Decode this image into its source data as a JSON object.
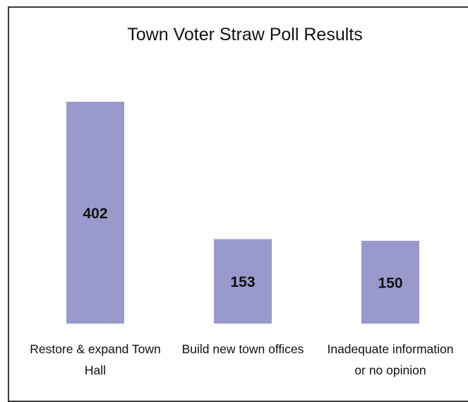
{
  "chart_data": {
    "type": "bar",
    "title": "Town Voter Straw Poll Results",
    "categories": [
      [
        "Restore & expand Town",
        "Hall"
      ],
      [
        "Build new town offices"
      ],
      [
        "Inadequate information",
        "or no opinion"
      ]
    ],
    "values": [
      402,
      153,
      150
    ],
    "value_labels": [
      "402",
      "153",
      "150"
    ],
    "xlabel": "",
    "ylabel": "",
    "ylim": [
      0,
      402
    ],
    "grid": false,
    "legend": "none",
    "colors": {
      "bar": "#9999cc",
      "frame": "#3a3a3a",
      "text": "#111111"
    }
  }
}
